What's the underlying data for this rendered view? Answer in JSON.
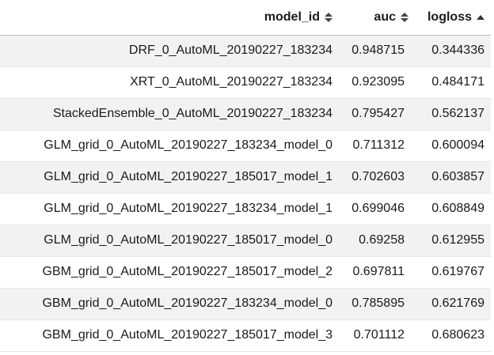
{
  "table": {
    "columns": [
      {
        "label": "model_id",
        "sort": "none"
      },
      {
        "label": "auc",
        "sort": "none"
      },
      {
        "label": "logloss",
        "sort": "ascending"
      }
    ],
    "rows": [
      {
        "model_id": "DRF_0_AutoML_20190227_183234",
        "auc": "0.948715",
        "logloss": "0.344336"
      },
      {
        "model_id": "XRT_0_AutoML_20190227_183234",
        "auc": "0.923095",
        "logloss": "0.484171"
      },
      {
        "model_id": "StackedEnsemble_0_AutoML_20190227_183234",
        "auc": "0.795427",
        "logloss": "0.562137"
      },
      {
        "model_id": "GLM_grid_0_AutoML_20190227_183234_model_0",
        "auc": "0.711312",
        "logloss": "0.600094"
      },
      {
        "model_id": "GLM_grid_0_AutoML_20190227_185017_model_1",
        "auc": "0.702603",
        "logloss": "0.603857"
      },
      {
        "model_id": "GLM_grid_0_AutoML_20190227_183234_model_1",
        "auc": "0.699046",
        "logloss": "0.608849"
      },
      {
        "model_id": "GLM_grid_0_AutoML_20190227_185017_model_0",
        "auc": "0.69258",
        "logloss": "0.612955"
      },
      {
        "model_id": "GBM_grid_0_AutoML_20190227_185017_model_2",
        "auc": "0.697811",
        "logloss": "0.619767"
      },
      {
        "model_id": "GBM_grid_0_AutoML_20190227_183234_model_0",
        "auc": "0.785895",
        "logloss": "0.621769"
      },
      {
        "model_id": "GBM_grid_0_AutoML_20190227_185017_model_3",
        "auc": "0.701112",
        "logloss": "0.680623"
      }
    ]
  }
}
